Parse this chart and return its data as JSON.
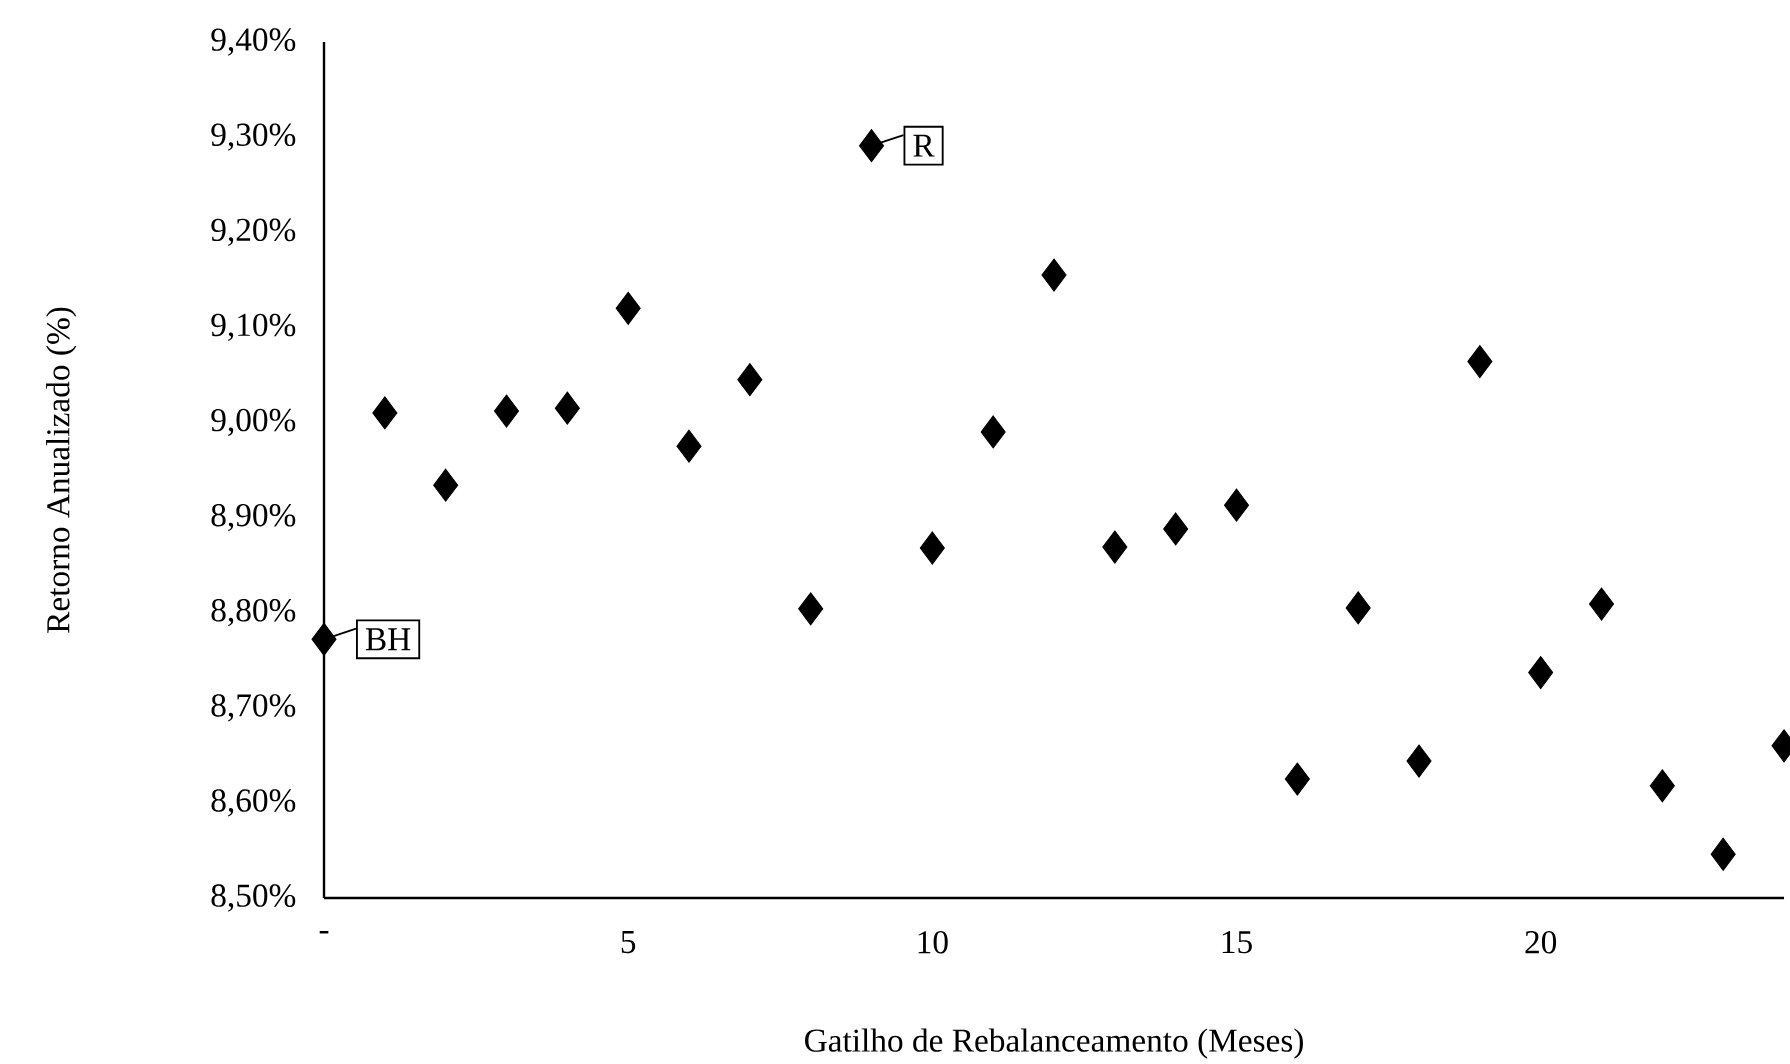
{
  "chart_data": {
    "type": "scatter",
    "xlabel": "Gatilho de Rebalanceamento (Meses)",
    "ylabel": "Retorno Anualizado (%)",
    "x": [
      0,
      1,
      2,
      3,
      4,
      5,
      6,
      7,
      8,
      9,
      10,
      11,
      12,
      13,
      14,
      15,
      16,
      17,
      18,
      19,
      20,
      21,
      22,
      23,
      24
    ],
    "series": [
      {
        "color": "#000000",
        "values": [
          8.772,
          9.01,
          8.934,
          9.012,
          9.015,
          9.12,
          8.975,
          9.045,
          8.804,
          9.291,
          8.868,
          8.99,
          9.155,
          8.869,
          8.888,
          8.913,
          8.625,
          8.805,
          8.644,
          9.064,
          8.737,
          8.809,
          8.618,
          8.546,
          8.66
        ]
      }
    ],
    "marker": "diamond",
    "xlim": [
      0,
      24
    ],
    "xticks": [
      {
        "value": 0,
        "label": "-"
      },
      5,
      10,
      15,
      20
    ],
    "ylim": [
      8.5,
      9.4
    ],
    "yticks": [
      {
        "value": 8.5,
        "label": "8,50%"
      },
      {
        "value": 8.6,
        "label": "8,60%"
      },
      {
        "value": 8.7,
        "label": "8,70%"
      },
      {
        "value": 8.8,
        "label": "8,80%"
      },
      {
        "value": 8.9,
        "label": "8,90%"
      },
      {
        "value": 9.0,
        "label": "9,00%"
      },
      {
        "value": 9.1,
        "label": "9,10%"
      },
      {
        "value": 9.2,
        "label": "9,20%"
      },
      {
        "value": 9.3,
        "label": "9,30%"
      },
      {
        "value": 9.4,
        "label": "9,40%"
      }
    ],
    "annotations": [
      {
        "text": "BH",
        "x": 0,
        "y": 8.772
      },
      {
        "text": "R",
        "x": 9,
        "y": 9.291
      }
    ],
    "grid": false
  }
}
